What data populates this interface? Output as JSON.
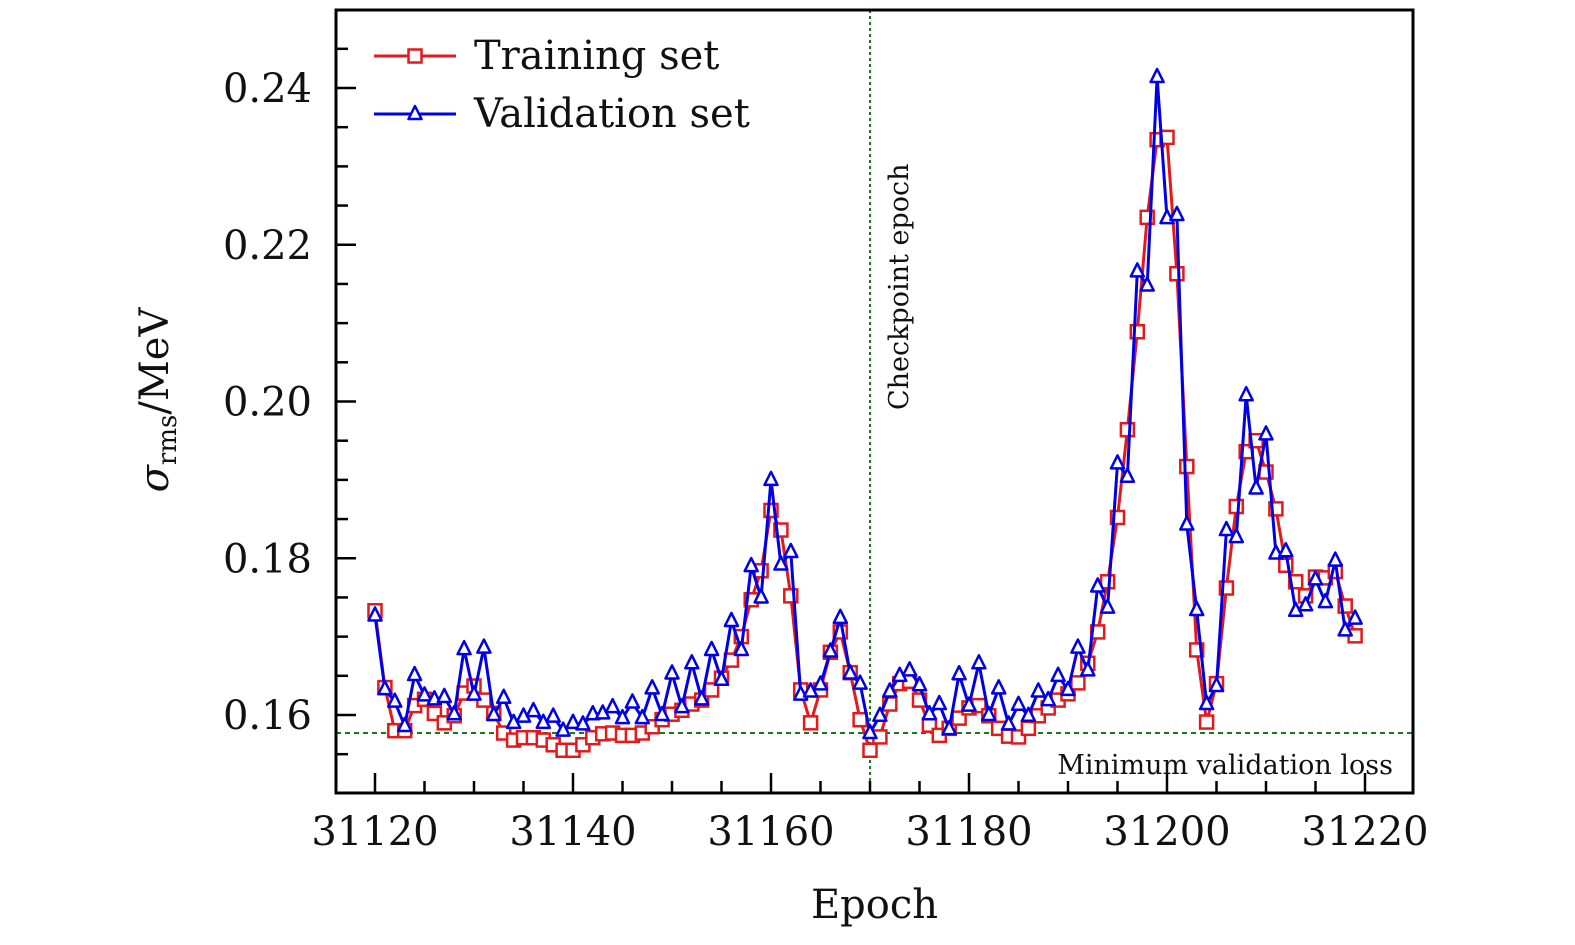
{
  "chart_data": {
    "type": "line",
    "title": "",
    "xlabel": "Epoch",
    "ylabel": "σ_rms/MeV",
    "ylabel_parts": {
      "symbol": "σ",
      "subscript": "rms",
      "unit": "/MeV"
    },
    "xlim": [
      31116,
      31224
    ],
    "ylim": [
      0.15,
      0.25
    ],
    "x_ticks": [
      31120,
      31140,
      31160,
      31180,
      31200,
      31220
    ],
    "x_tick_labels": [
      "31120",
      "31140",
      "31160",
      "31180",
      "31200",
      "31220"
    ],
    "x_minor_step": 5,
    "y_ticks": [
      0.16,
      0.18,
      0.2,
      0.22,
      0.24
    ],
    "y_tick_labels": [
      "0.16",
      "0.18",
      "0.20",
      "0.22",
      "0.24"
    ],
    "y_minor_step": 0.005,
    "grid": false,
    "legend_position": "top-left",
    "x_start": 31120,
    "x_step": 1,
    "series": [
      {
        "name": "Training set",
        "color": "#e31a1c",
        "marker": "square",
        "values": [
          0.1733,
          0.1635,
          0.158,
          0.158,
          0.1612,
          0.162,
          0.1602,
          0.159,
          0.1599,
          0.1628,
          0.1637,
          0.1619,
          0.1602,
          0.1577,
          0.1568,
          0.1571,
          0.1571,
          0.1568,
          0.1562,
          0.1555,
          0.1555,
          0.1562,
          0.1571,
          0.1576,
          0.1577,
          0.1574,
          0.1574,
          0.1577,
          0.1585,
          0.1594,
          0.1601,
          0.1606,
          0.1614,
          0.1619,
          0.1632,
          0.1647,
          0.167,
          0.17,
          0.1747,
          0.1784,
          0.1861,
          0.1836,
          0.1752,
          0.1632,
          0.159,
          0.1632,
          0.168,
          0.1706,
          0.1654,
          0.1594,
          0.1555,
          0.1572,
          0.1614,
          0.164,
          0.1643,
          0.1619,
          0.1587,
          0.1574,
          0.1583,
          0.1596,
          0.1609,
          0.1612,
          0.1599,
          0.1583,
          0.1573,
          0.1572,
          0.1583,
          0.1599,
          0.1609,
          0.1619,
          0.1627,
          0.1641,
          0.1666,
          0.1706,
          0.177,
          0.1852,
          0.1964,
          0.2089,
          0.2235,
          0.2334,
          0.2337,
          0.2163,
          0.1917,
          0.1683,
          0.1591,
          0.164,
          0.1762,
          0.1866,
          0.1936,
          0.195,
          0.191,
          0.1863,
          0.1791,
          0.177,
          0.1752,
          0.1776,
          0.1775,
          0.1783,
          0.1739,
          0.1701
        ]
      },
      {
        "name": "Validation set",
        "color": "#0000e6",
        "marker": "triangle",
        "values": [
          0.1727,
          0.1633,
          0.1617,
          0.1586,
          0.1651,
          0.1625,
          0.162,
          0.1623,
          0.1601,
          0.1684,
          0.1626,
          0.1686,
          0.16,
          0.1622,
          0.159,
          0.1598,
          0.1605,
          0.159,
          0.1598,
          0.158,
          0.159,
          0.1588,
          0.1601,
          0.1602,
          0.161,
          0.1596,
          0.1616,
          0.1596,
          0.1634,
          0.16,
          0.1653,
          0.161,
          0.1666,
          0.162,
          0.1683,
          0.1645,
          0.172,
          0.1683,
          0.179,
          0.175,
          0.19,
          0.1792,
          0.1808,
          0.1626,
          0.163,
          0.1639,
          0.1681,
          0.1724,
          0.1653,
          0.164,
          0.1577,
          0.1599,
          0.163,
          0.165,
          0.1657,
          0.1638,
          0.1601,
          0.1614,
          0.1582,
          0.1652,
          0.1612,
          0.1666,
          0.16,
          0.1634,
          0.1588,
          0.1613,
          0.1599,
          0.163,
          0.1619,
          0.165,
          0.1632,
          0.1686,
          0.1657,
          0.1764,
          0.1737,
          0.1921,
          0.1904,
          0.2166,
          0.2148,
          0.2414,
          0.2234,
          0.2238,
          0.1843,
          0.1734,
          0.1614,
          0.1637,
          0.1836,
          0.1827,
          0.2008,
          0.1889,
          0.1958,
          0.1806,
          0.1809,
          0.1733,
          0.174,
          0.1773,
          0.1744,
          0.1797,
          0.1708,
          0.1723
        ]
      }
    ],
    "reference_lines": [
      {
        "orientation": "vertical",
        "x": 31170,
        "label": "Checkpoint epoch",
        "color": "#1a7a1a",
        "style": "dotted"
      },
      {
        "orientation": "horizontal",
        "y": 0.1577,
        "label": "Minimum validation loss",
        "color": "#1a7a1a",
        "style": "dashed"
      }
    ]
  }
}
